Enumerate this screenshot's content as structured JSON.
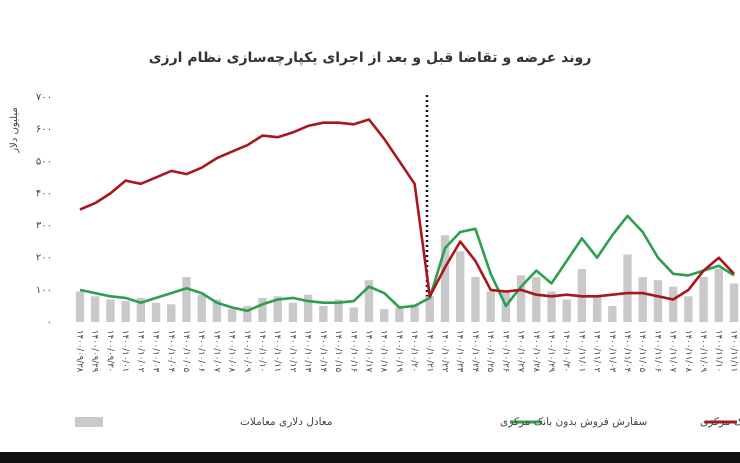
{
  "chart_data": {
    "type": "combo",
    "title": "روند عرضه و تقاضا قبل و بعد از اجرای یکپارچه‌سازی نظام ارزی",
    "y_label": "میلیون دلار",
    "categories": [
      "۱۴۰۰/۰۹/۲۸",
      "۱۴۰۰/۰۹/۲۹",
      "۱۴۰۰/۰۹/۳۰",
      "۱۴۰۰/۱۰/۰۱",
      "۱۴۰۰/۱۰/۰۲",
      "۱۴۰۰/۱۰/۰۳",
      "۱۴۰۰/۱۰/۰۴",
      "۱۴۰۰/۱۰/۰۵",
      "۱۴۰۰/۱۰/۰۶",
      "۱۴۰۰/۱۰/۰۷",
      "۱۴۰۰/۱۰/۰۸",
      "۱۴۰۰/۱۰/۰۹",
      "۱۴۰۰/۱۰/۱۰",
      "۱۴۰۰/۱۰/۱۱",
      "۱۴۰۰/۱۰/۱۲",
      "۱۴۰۰/۱۰/۱۳",
      "۱۴۰۰/۱۰/۱۴",
      "۱۴۰۰/۱۰/۱۵",
      "۱۴۰۰/۱۰/۱۶",
      "۱۴۰۰/۱۰/۱۷",
      "۱۴۰۰/۱۰/۱۸",
      "۱۴۰۰/۱۰/۱۹",
      "۱۴۰۰/۱۰/۲۰",
      "۱۴۰۰/۱۰/۲۱",
      "۱۴۰۰/۱۰/۲۲",
      "۱۴۰۰/۱۰/۲۳",
      "۱۴۰۰/۱۰/۲۴",
      "۱۴۰۰/۱۰/۲۵",
      "۱۴۰۰/۱۰/۲۶",
      "۱۴۰۰/۱۰/۲۷",
      "۱۴۰۰/۱۰/۲۸",
      "۱۴۰۰/۱۰/۲۹",
      "۱۴۰۰/۱۰/۳۰",
      "۱۴۰۰/۱۱/۰۱",
      "۱۴۰۰/۱۱/۰۲",
      "۱۴۰۰/۱۱/۰۳",
      "۱۴۰۰/۱۱/۰۴",
      "۱۴۰۰/۱۱/۰۵",
      "۱۴۰۰/۱۱/۰۶",
      "۱۴۰۰/۱۱/۰۷",
      "۱۴۰۰/۱۱/۰۸",
      "۱۴۰۰/۱۱/۰۹",
      "۱۴۰۰/۱۱/۱۰",
      "۱۴۰۰/۱۱/۱۱"
    ],
    "series": [
      {
        "name": "معادل دلاری معاملات",
        "type": "bar",
        "color": "#c9c9c9",
        "values": [
          95,
          80,
          70,
          65,
          75,
          60,
          55,
          140,
          85,
          70,
          40,
          50,
          75,
          80,
          60,
          85,
          50,
          70,
          45,
          130,
          40,
          45,
          55,
          80,
          270,
          220,
          140,
          95,
          100,
          145,
          140,
          95,
          70,
          165,
          80,
          50,
          210,
          140,
          130,
          110,
          80,
          140,
          165,
          120
        ]
      },
      {
        "name": "سفارش فروش بدون بانک مرکزی",
        "type": "line",
        "color": "#2e9e4f",
        "values": [
          100,
          90,
          80,
          75,
          60,
          75,
          90,
          105,
          90,
          60,
          45,
          35,
          55,
          70,
          75,
          65,
          60,
          60,
          65,
          110,
          90,
          45,
          50,
          75,
          230,
          280,
          290,
          150,
          50,
          110,
          160,
          120,
          190,
          260,
          200,
          270,
          330,
          280,
          200,
          150,
          145,
          160,
          175,
          145
        ]
      },
      {
        "name": "سفارش خرید بدون بانک مرکزی",
        "type": "line",
        "color": "#a8171b",
        "values": [
          350,
          370,
          400,
          440,
          430,
          450,
          470,
          460,
          480,
          510,
          530,
          550,
          580,
          575,
          590,
          610,
          620,
          620,
          615,
          630,
          570,
          500,
          430,
          80,
          170,
          250,
          190,
          100,
          95,
          100,
          85,
          80,
          85,
          80,
          80,
          85,
          90,
          90,
          80,
          70,
          100,
          160,
          200,
          150
        ]
      }
    ],
    "ylim": [
      0,
      700
    ],
    "yticks": [
      {
        "value": 0,
        "label": "۰"
      },
      {
        "value": 100,
        "label": "۱۰۰"
      },
      {
        "value": 200,
        "label": "۲۰۰"
      },
      {
        "value": 300,
        "label": "۳۰۰"
      },
      {
        "value": 400,
        "label": "۴۰۰"
      },
      {
        "value": 500,
        "label": "۵۰۰"
      },
      {
        "value": 600,
        "label": "۶۰۰"
      },
      {
        "value": 700,
        "label": "۷۰۰"
      }
    ]
  }
}
